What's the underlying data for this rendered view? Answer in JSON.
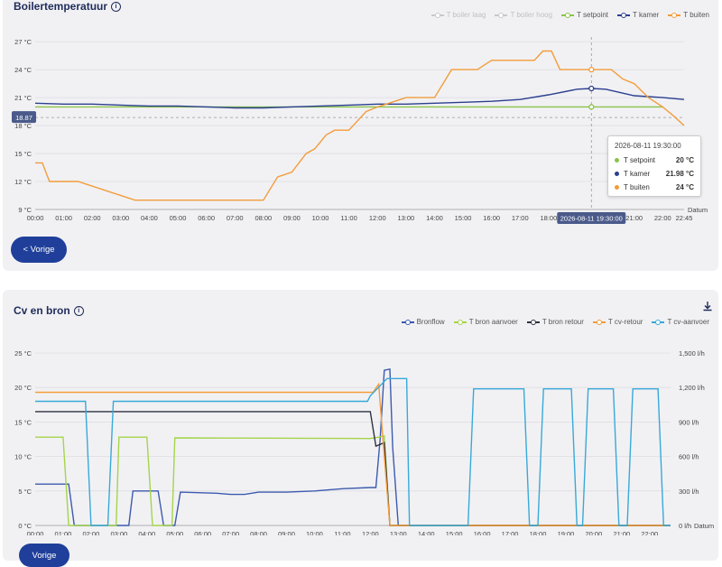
{
  "chart1": {
    "title": "Boilertemperatuur",
    "legend": [
      {
        "name": "T boiler laag",
        "color": "#c8c8c8",
        "off": true
      },
      {
        "name": "T boiler hoog",
        "color": "#c8c8c8",
        "off": true
      },
      {
        "name": "T setpoint",
        "color": "#8bc34a",
        "off": false
      },
      {
        "name": "T kamer",
        "color": "#2b3f8f",
        "off": false
      },
      {
        "name": "T buiten",
        "color": "#f39c3a",
        "off": false
      }
    ],
    "prev_label": "< Vorige",
    "crosshair_value": "18.87",
    "crosshair_time": "2026-08-11 19:30:00",
    "tooltip": {
      "time": "2026-08-11 19:30:00",
      "rows": [
        {
          "name": "T setpoint",
          "value": "20 °C",
          "color": "#8bc34a"
        },
        {
          "name": "T kamer",
          "value": "21.98 °C",
          "color": "#2b3f8f"
        },
        {
          "name": "T buiten",
          "value": "24 °C",
          "color": "#f39c3a"
        }
      ]
    }
  },
  "chart2": {
    "title": "Cv en bron",
    "legend": [
      {
        "name": "Bronflow",
        "color": "#3d5aad"
      },
      {
        "name": "T bron aanvoer",
        "color": "#a5d44a"
      },
      {
        "name": "T bron retour",
        "color": "#2e3140"
      },
      {
        "name": "T cv-retour",
        "color": "#f39c3a"
      },
      {
        "name": "T cv-aanvoer",
        "color": "#38a9d8"
      }
    ],
    "prev_label": "Vorige"
  },
  "chart_data": [
    {
      "type": "line",
      "title": "Boilertemperatuur",
      "xlabel": "Datum",
      "x_ticks": [
        "00:00",
        "01:00",
        "02:00",
        "03:00",
        "04:00",
        "05:00",
        "06:00",
        "07:00",
        "08:00",
        "09:00",
        "10:00",
        "11:00",
        "12:00",
        "13:00",
        "14:00",
        "15:00",
        "16:00",
        "17:00",
        "18:00",
        "19:00",
        "20:00",
        "21:00",
        "22:00",
        "22:45"
      ],
      "y_ticks": [
        "9 °C",
        "12 °C",
        "15 °C",
        "18 °C",
        "21 °C",
        "24 °C",
        "27 °C"
      ],
      "ylim": [
        9,
        27.5
      ],
      "xlim": [
        0,
        22.75
      ],
      "series": [
        {
          "name": "T setpoint",
          "color": "#8bc34a",
          "points": [
            [
              0,
              20
            ],
            [
              22.0,
              20
            ]
          ]
        },
        {
          "name": "T kamer",
          "color": "#2b3f8f",
          "points": [
            [
              0,
              20.4
            ],
            [
              1,
              20.3
            ],
            [
              2,
              20.3
            ],
            [
              3,
              20.2
            ],
            [
              4,
              20.1
            ],
            [
              5,
              20.1
            ],
            [
              6,
              20.0
            ],
            [
              7,
              19.9
            ],
            [
              8,
              19.9
            ],
            [
              9,
              20.0
            ],
            [
              10,
              20.1
            ],
            [
              11,
              20.2
            ],
            [
              12,
              20.3
            ],
            [
              13,
              20.3
            ],
            [
              14,
              20.4
            ],
            [
              15,
              20.5
            ],
            [
              16,
              20.6
            ],
            [
              17,
              20.8
            ],
            [
              18,
              21.3
            ],
            [
              19,
              21.9
            ],
            [
              19.5,
              21.98
            ],
            [
              20,
              21.9
            ],
            [
              21,
              21.2
            ],
            [
              22,
              21.0
            ],
            [
              22.75,
              20.8
            ]
          ]
        },
        {
          "name": "T buiten",
          "color": "#f39c3a",
          "points": [
            [
              0,
              14
            ],
            [
              0.25,
              14
            ],
            [
              0.5,
              12
            ],
            [
              1.5,
              12
            ],
            [
              3.5,
              10
            ],
            [
              8.0,
              10
            ],
            [
              8.5,
              12.5
            ],
            [
              9,
              13
            ],
            [
              9.5,
              15
            ],
            [
              9.8,
              15.5
            ],
            [
              10.2,
              17
            ],
            [
              10.5,
              17.5
            ],
            [
              11,
              17.5
            ],
            [
              11.6,
              19.5
            ],
            [
              12,
              20
            ],
            [
              12.5,
              20.5
            ],
            [
              13,
              21
            ],
            [
              14,
              21
            ],
            [
              14.6,
              24
            ],
            [
              15.5,
              24
            ],
            [
              16,
              25
            ],
            [
              17.5,
              25
            ],
            [
              17.8,
              26
            ],
            [
              18.1,
              26
            ],
            [
              18.4,
              24
            ],
            [
              19.5,
              24
            ],
            [
              20.2,
              24
            ],
            [
              20.6,
              23
            ],
            [
              21,
              22.5
            ],
            [
              21.5,
              21
            ],
            [
              22,
              20
            ],
            [
              22.4,
              19
            ],
            [
              22.75,
              18
            ]
          ]
        }
      ]
    },
    {
      "type": "line",
      "title": "Cv en bron",
      "xlabel": "Datum",
      "x_ticks": [
        "00:00",
        "01:00",
        "02:00",
        "03:00",
        "04:00",
        "05:00",
        "06:00",
        "07:00",
        "08:00",
        "09:00",
        "10:00",
        "11:00",
        "12:00",
        "13:00",
        "14:00",
        "15:00",
        "16:00",
        "17:00",
        "18:00",
        "19:00",
        "20:00",
        "21:00",
        "22:00"
      ],
      "y_ticks_left": [
        "0 °C",
        "5 °C",
        "10 °C",
        "15 °C",
        "20 °C",
        "25 °C"
      ],
      "y_ticks_right": [
        "0 l/h",
        "300 l/h",
        "600 l/h",
        "900 l/h",
        "1,200 l/h",
        "1,500 l/h"
      ],
      "ylim_left": [
        0,
        25
      ],
      "ylim_right": [
        0,
        1500
      ],
      "xlim": [
        0,
        22.75
      ],
      "series": [
        {
          "name": "Bronflow",
          "axis": "right",
          "color": "#3d5aad",
          "points": [
            [
              0,
              360
            ],
            [
              1.2,
              360
            ],
            [
              1.4,
              0
            ],
            [
              2.7,
              0
            ],
            [
              2.85,
              0
            ],
            [
              3.2,
              0
            ],
            [
              3.35,
              0
            ],
            [
              3.5,
              300
            ],
            [
              4.4,
              300
            ],
            [
              4.6,
              0
            ],
            [
              5.0,
              0
            ],
            [
              5.2,
              290
            ],
            [
              6.5,
              280
            ],
            [
              7.0,
              270
            ],
            [
              7.5,
              270
            ],
            [
              8.0,
              290
            ],
            [
              9.0,
              290
            ],
            [
              10,
              300
            ],
            [
              11,
              320
            ],
            [
              12,
              330
            ],
            [
              12.2,
              330
            ],
            [
              12.35,
              750
            ],
            [
              12.5,
              1350
            ],
            [
              12.7,
              1360
            ],
            [
              12.8,
              680
            ],
            [
              13.0,
              0
            ],
            [
              22.75,
              0
            ]
          ]
        },
        {
          "name": "T bron aanvoer",
          "color": "#a5d44a",
          "points": [
            [
              0,
              12.8
            ],
            [
              1,
              12.8
            ],
            [
              1.2,
              0
            ],
            [
              2.9,
              0
            ],
            [
              3.0,
              12.8
            ],
            [
              4.0,
              12.8
            ],
            [
              4.2,
              0
            ],
            [
              4.9,
              0
            ],
            [
              5.0,
              12.7
            ],
            [
              12.0,
              12.6
            ],
            [
              12.3,
              12.8
            ],
            [
              12.5,
              13.0
            ],
            [
              12.7,
              0
            ],
            [
              22.75,
              0
            ]
          ]
        },
        {
          "name": "T bron retour",
          "color": "#2e3140",
          "points": [
            [
              0,
              16.5
            ],
            [
              12.0,
              16.5
            ],
            [
              12.2,
              11.5
            ],
            [
              12.5,
              12
            ],
            [
              12.7,
              0
            ],
            [
              22.75,
              0
            ]
          ]
        },
        {
          "name": "T cv-retour",
          "color": "#f39c3a",
          "points": [
            [
              0,
              19.3
            ],
            [
              12.1,
              19.3
            ],
            [
              12.3,
              20.5
            ],
            [
              12.5,
              10
            ],
            [
              12.7,
              0
            ],
            [
              22.75,
              0
            ]
          ]
        },
        {
          "name": "T cv-aanvoer",
          "color": "#38a9d8",
          "points": [
            [
              0,
              18.0
            ],
            [
              1.8,
              18.0
            ],
            [
              2.0,
              0
            ],
            [
              2.6,
              0
            ],
            [
              2.8,
              18.0
            ],
            [
              11.9,
              18.0
            ],
            [
              12.0,
              18.8
            ],
            [
              12.6,
              21.3
            ],
            [
              13.3,
              21.3
            ],
            [
              13.4,
              0
            ],
            [
              15.5,
              0
            ],
            [
              15.7,
              19.8
            ],
            [
              17.5,
              19.8
            ],
            [
              17.7,
              0
            ],
            [
              18.0,
              0
            ],
            [
              18.2,
              19.8
            ],
            [
              19.2,
              19.8
            ],
            [
              19.4,
              0
            ],
            [
              19.6,
              0
            ],
            [
              19.8,
              19.8
            ],
            [
              20.7,
              19.8
            ],
            [
              20.9,
              0
            ],
            [
              21.2,
              0
            ],
            [
              21.4,
              19.8
            ],
            [
              22.3,
              19.8
            ],
            [
              22.5,
              0
            ],
            [
              22.75,
              0
            ]
          ]
        }
      ]
    }
  ]
}
